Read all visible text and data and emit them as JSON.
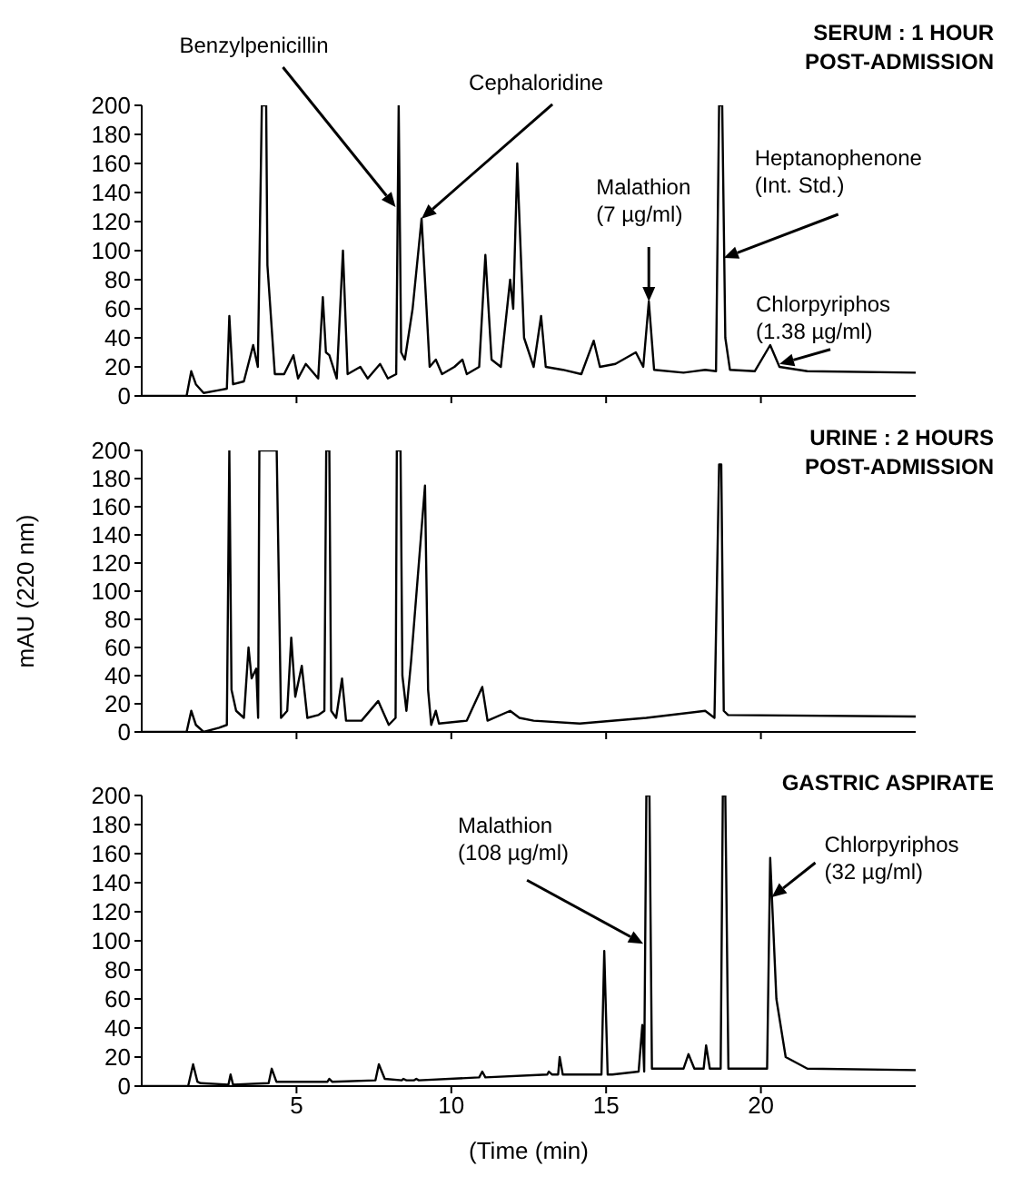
{
  "chart_data": [
    {
      "type": "line",
      "title": "SERUM : 1 HOUR\nPOST-ADMISSION",
      "xlim": [
        0,
        25
      ],
      "xticks": [
        5,
        10,
        15,
        20
      ],
      "ylim": [
        0,
        200
      ],
      "yticks": [
        0,
        20,
        40,
        60,
        80,
        100,
        120,
        140,
        160,
        180,
        200
      ],
      "tick_labels": "y",
      "marker": "none",
      "line_style": "solid",
      "series": [
        {
          "color": "#000000",
          "x": [
            0,
            1.45,
            1.6,
            1.75,
            2.0,
            2.5,
            2.75,
            2.83,
            2.95,
            3.3,
            3.6,
            3.75,
            3.88,
            3.92,
            4.02,
            4.06,
            4.3,
            4.6,
            4.9,
            5.05,
            5.3,
            5.7,
            5.85,
            5.95,
            6.06,
            6.3,
            6.5,
            6.65,
            7.06,
            7.3,
            7.7,
            7.95,
            8.22,
            8.3,
            8.38,
            8.5,
            8.75,
            9.04,
            9.2,
            9.3,
            9.5,
            9.7,
            10.1,
            10.36,
            10.5,
            10.9,
            11.1,
            11.3,
            11.6,
            11.9,
            12.0,
            12.13,
            12.35,
            12.66,
            12.9,
            13.05,
            13.6,
            14.2,
            14.6,
            14.8,
            15.3,
            15.96,
            16.2,
            16.38,
            16.55,
            17.5,
            18.2,
            18.55,
            18.65,
            18.75,
            18.85,
            19.0,
            19.8,
            20.3,
            20.6,
            21.5,
            25
          ],
          "values": [
            0,
            0,
            17,
            8,
            2,
            4,
            5,
            55,
            8,
            10,
            35,
            20,
            200,
            200,
            200,
            90,
            15,
            15,
            28,
            12,
            22,
            12,
            68,
            30,
            28,
            12,
            100,
            15,
            20,
            12,
            22,
            12,
            15,
            200,
            30,
            25,
            60,
            122,
            60,
            20,
            25,
            15,
            20,
            25,
            15,
            20,
            97,
            25,
            20,
            80,
            60,
            160,
            40,
            20,
            55,
            20,
            18,
            15,
            38,
            20,
            22,
            30,
            20,
            65,
            18,
            16,
            18,
            17,
            200,
            200,
            40,
            18,
            17,
            35,
            20,
            17,
            16
          ]
        }
      ],
      "annotations": [
        {
          "text": "Benzylpenicillin",
          "x": 8.2,
          "y": 130
        },
        {
          "text": "Cephaloridine",
          "x": 9.04,
          "y": 122
        },
        {
          "text": "Malathion\n(7 µg/ml)",
          "x": 16.38,
          "y": 65
        },
        {
          "text": "Heptanophenone\n(Int. Std.)",
          "x": 18.8,
          "y": 95
        },
        {
          "text": "Chlorpyriphos\n(1.38 µg/ml)",
          "x": 20.6,
          "y": 22
        }
      ]
    },
    {
      "type": "line",
      "title": "URINE : 2 HOURS\nPOST-ADMISSION",
      "ylabel": "mAU (220 nm)",
      "xlim": [
        0,
        25
      ],
      "xticks": [
        5,
        10,
        15,
        20
      ],
      "ylim": [
        0,
        200
      ],
      "yticks": [
        0,
        20,
        40,
        60,
        80,
        100,
        120,
        140,
        160,
        180,
        200
      ],
      "tick_labels": "y",
      "marker": "none",
      "line_style": "solid",
      "series": [
        {
          "color": "#000000",
          "x": [
            0,
            1.45,
            1.6,
            1.75,
            2.0,
            2.5,
            2.75,
            2.83,
            2.9,
            3.05,
            3.3,
            3.45,
            3.55,
            3.7,
            3.76,
            3.8,
            3.86,
            3.95,
            4.25,
            4.3,
            4.36,
            4.5,
            4.7,
            4.83,
            4.96,
            5.17,
            5.35,
            5.7,
            5.9,
            5.96,
            6.06,
            6.12,
            6.28,
            6.47,
            6.6,
            7.1,
            7.64,
            7.98,
            8.2,
            8.24,
            8.36,
            8.42,
            8.55,
            8.7,
            9.15,
            9.25,
            9.35,
            9.5,
            9.6,
            10.5,
            11.0,
            11.17,
            11.9,
            12.2,
            12.66,
            14.15,
            16.3,
            18.2,
            18.5,
            18.65,
            18.72,
            18.8,
            18.94,
            25
          ],
          "values": [
            0,
            0,
            15,
            5,
            0,
            3,
            5,
            200,
            30,
            15,
            10,
            60,
            38,
            45,
            10,
            200,
            200,
            200,
            200,
            200,
            200,
            10,
            15,
            67,
            25,
            47,
            10,
            12,
            15,
            200,
            200,
            15,
            10,
            38,
            8,
            8,
            22,
            5,
            10,
            200,
            200,
            40,
            15,
            50,
            175,
            30,
            5,
            15,
            6,
            8,
            32,
            8,
            15,
            10,
            8,
            6,
            10,
            15,
            10,
            190,
            190,
            15,
            12,
            11
          ]
        }
      ]
    },
    {
      "type": "line",
      "title": "GASTRIC ASPIRATE",
      "xlabel": "(Time (min)",
      "xlim": [
        0,
        25
      ],
      "xticks": [
        5,
        10,
        15,
        20
      ],
      "ylim": [
        0,
        200
      ],
      "yticks": [
        0,
        20,
        40,
        60,
        80,
        100,
        120,
        140,
        160,
        180,
        200
      ],
      "marker": "none",
      "line_style": "solid",
      "series": [
        {
          "color": "#000000",
          "x": [
            0,
            1.5,
            1.66,
            1.8,
            1.9,
            2.8,
            2.87,
            2.95,
            4.1,
            4.2,
            4.35,
            6.0,
            6.06,
            6.15,
            7.55,
            7.66,
            7.85,
            8.4,
            8.45,
            8.55,
            8.8,
            8.87,
            8.95,
            10.9,
            11.0,
            11.1,
            13.1,
            13.15,
            13.25,
            13.45,
            13.5,
            13.6,
            14.85,
            14.94,
            15.05,
            15.2,
            16.05,
            16.17,
            16.23,
            16.3,
            16.4,
            16.48,
            16.6,
            17.5,
            17.66,
            17.85,
            18.15,
            18.23,
            18.35,
            18.7,
            18.77,
            18.85,
            18.95,
            20.2,
            20.3,
            20.5,
            20.8,
            21.5,
            25
          ],
          "values": [
            0,
            0,
            15,
            3,
            2,
            1,
            8,
            1,
            2,
            12,
            3,
            3,
            5,
            3,
            4,
            15,
            5,
            4,
            5,
            4,
            4,
            5,
            4,
            6,
            10,
            6,
            8,
            10,
            8,
            8,
            20,
            8,
            8,
            93,
            8,
            8,
            10,
            42,
            10,
            200,
            200,
            12,
            12,
            12,
            22,
            12,
            12,
            28,
            12,
            12,
            200,
            200,
            12,
            12,
            157,
            60,
            20,
            12,
            11
          ]
        }
      ],
      "annotations": [
        {
          "text": "Malathion\n(108 µg/ml)",
          "x": 16.2,
          "y": 98
        },
        {
          "text": "Chlorpyriphos\n(32 µg/ml)",
          "x": 20.35,
          "y": 130
        }
      ]
    }
  ]
}
